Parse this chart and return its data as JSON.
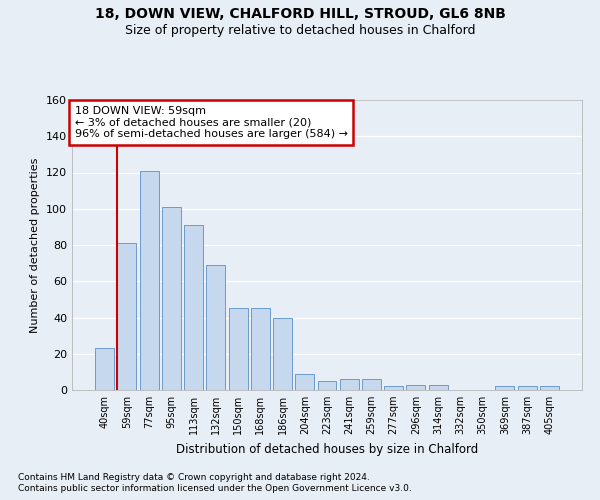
{
  "title1": "18, DOWN VIEW, CHALFORD HILL, STROUD, GL6 8NB",
  "title2": "Size of property relative to detached houses in Chalford",
  "xlabel": "Distribution of detached houses by size in Chalford",
  "ylabel": "Number of detached properties",
  "footnote1": "Contains HM Land Registry data © Crown copyright and database right 2024.",
  "footnote2": "Contains public sector information licensed under the Open Government Licence v3.0.",
  "categories": [
    "40sqm",
    "59sqm",
    "77sqm",
    "95sqm",
    "113sqm",
    "132sqm",
    "150sqm",
    "168sqm",
    "186sqm",
    "204sqm",
    "223sqm",
    "241sqm",
    "259sqm",
    "277sqm",
    "296sqm",
    "314sqm",
    "332sqm",
    "350sqm",
    "369sqm",
    "387sqm",
    "405sqm"
  ],
  "values": [
    23,
    81,
    121,
    101,
    91,
    69,
    45,
    45,
    40,
    9,
    5,
    6,
    6,
    2,
    3,
    3,
    0,
    0,
    2,
    2,
    2
  ],
  "bar_color": "#c5d8ed",
  "bar_edge_color": "#5b8fc9",
  "ylim": [
    0,
    160
  ],
  "yticks": [
    0,
    20,
    40,
    60,
    80,
    100,
    120,
    140,
    160
  ],
  "annotation_title": "18 DOWN VIEW: 59sqm",
  "annotation_line1": "← 3% of detached houses are smaller (20)",
  "annotation_line2": "96% of semi-detached houses are larger (584) →",
  "vline_bar_index": 1,
  "background_color": "#e8eef5",
  "plot_bg_color": "#e8eef5",
  "grid_color": "#ffffff",
  "annotation_box_color": "#ffffff",
  "annotation_box_edge": "#cc0000",
  "vline_color": "#cc0000",
  "title1_fontsize": 10,
  "title2_fontsize": 9,
  "ylabel_fontsize": 8,
  "xlabel_fontsize": 8.5,
  "tick_fontsize": 7,
  "annotation_fontsize": 8
}
